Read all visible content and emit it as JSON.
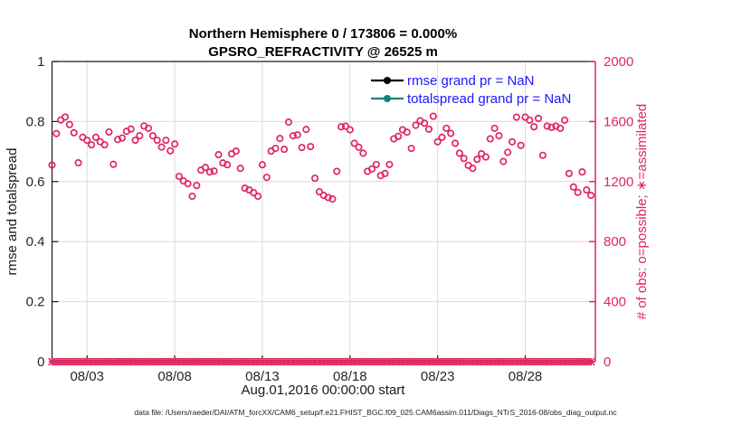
{
  "title": {
    "line1": "Northern Hemisphere 0 / 173806 = 0.000%",
    "line2": "GPSRO_REFRACTIVITY @ 26525 m"
  },
  "legend": [
    {
      "label": "rmse grand pr = NaN",
      "color": "#000000"
    },
    {
      "label": "totalspread grand pr = NaN",
      "color": "#0f837c"
    }
  ],
  "axes": {
    "left": {
      "label": "rmse and totalspread",
      "ticks": [
        "0",
        "0.2",
        "0.4",
        "0.6",
        "0.8",
        "1"
      ],
      "range": [
        0,
        1
      ],
      "color": "#262626"
    },
    "right": {
      "label": "# of obs: o=possible; ∗=assimilated",
      "ticks": [
        "0",
        "400",
        "800",
        "1200",
        "1600",
        "2000"
      ],
      "range": [
        0,
        2000
      ],
      "color": "#e1265f"
    },
    "x": {
      "label": "Aug.01,2016 00:00:00 start",
      "tick_labels": [
        "08/03",
        "08/08",
        "08/13",
        "08/18",
        "08/23",
        "08/28"
      ],
      "tick_days": [
        2,
        7,
        12,
        17,
        22,
        27
      ],
      "range_days": [
        0,
        31
      ]
    }
  },
  "footer": "data file: /Users/raeder/DAI/ATM_forcXX/CAM6_setup/f.e21.FHIST_BGC.f09_025.CAM6assim.011/Diags_NTrS_2016-08/obs_diag_output.nc",
  "colors": {
    "obs_pink": "#e1265f",
    "grid_horizontal": "#f6c9d7",
    "grid_vertical": "#dbdbdb",
    "axis_dark": "#1a1a1a",
    "legend_text_blue": "#1a1aff",
    "totalspread_teal": "#0f837c"
  },
  "chart_data": {
    "type": "scatter",
    "title": "Northern Hemisphere 0 / 173806 = 0.000% — GPSRO_REFRACTIVITY @ 26525 m",
    "xlabel": "Aug.01,2016 00:00:00 start",
    "ylabel_left": "rmse and totalspread",
    "ylabel_right": "# of obs: o=possible; ∗=assimilated",
    "x_range_days": [
      0,
      31
    ],
    "ylim_left": [
      0,
      1
    ],
    "ylim_right": [
      0,
      2000
    ],
    "grid": true,
    "legend_position": "top-right, no box",
    "series": [
      {
        "name": "num-obs-possible",
        "marker": "o",
        "color": "#e1265f",
        "yaxis": "right",
        "start_day": 0,
        "step_days": 0.25,
        "values": [
          1310,
          1520,
          1610,
          1630,
          1580,
          1525,
          1325,
          1495,
          1475,
          1445,
          1495,
          1465,
          1445,
          1530,
          1315,
          1480,
          1490,
          1535,
          1550,
          1475,
          1505,
          1570,
          1555,
          1505,
          1475,
          1430,
          1475,
          1405,
          1450,
          1234,
          1204,
          1186,
          1102,
          1174,
          1276,
          1294,
          1264,
          1270,
          1379,
          1324,
          1312,
          1385,
          1403,
          1288,
          1156,
          1144,
          1126,
          1102,
          1312,
          1228,
          1403,
          1421,
          1487,
          1415,
          1596,
          1505,
          1511,
          1427,
          1547,
          1433,
          1222,
          1132,
          1108,
          1094,
          1084,
          1268,
          1565,
          1569,
          1545,
          1455,
          1429,
          1389,
          1268,
          1284,
          1314,
          1240,
          1254,
          1314,
          1485,
          1501,
          1545,
          1529,
          1421,
          1575,
          1605,
          1589,
          1549,
          1635,
          1465,
          1495,
          1555,
          1521,
          1455,
          1389,
          1354,
          1308,
          1288,
          1348,
          1385,
          1364,
          1485,
          1555,
          1505,
          1334,
          1395,
          1465,
          1629,
          1441,
          1629,
          1609,
          1565,
          1621,
          1375,
          1569,
          1561,
          1569,
          1555,
          1609,
          1254,
          1164,
          1128,
          1264,
          1144,
          1108
        ]
      },
      {
        "name": "num-obs-assimilated",
        "marker": "*",
        "color": "#e1265f",
        "yaxis": "right",
        "start_day": 0,
        "step_days": 0.25,
        "constant_value": 0,
        "count": 124
      },
      {
        "name": "rmse",
        "legend": "rmse grand pr = NaN",
        "color": "#000000",
        "yaxis": "left",
        "values": "NaN (nothing plotted)"
      },
      {
        "name": "totalspread",
        "legend": "totalspread grand pr = NaN",
        "color": "#0f837c",
        "yaxis": "left",
        "values": "NaN (nothing plotted)"
      }
    ]
  }
}
